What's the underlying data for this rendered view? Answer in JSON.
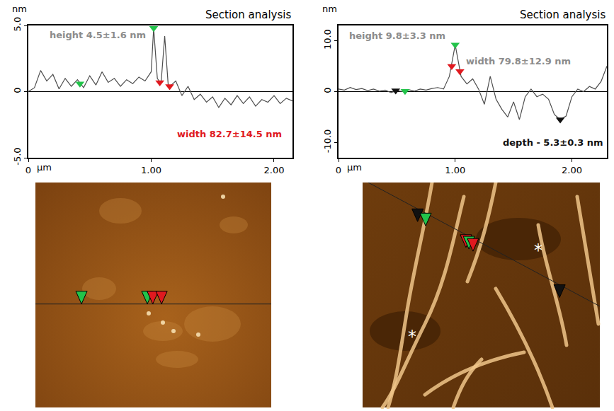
{
  "chart_data": [
    {
      "type": "line",
      "title": "Section analysis",
      "y_label": "nm",
      "x_label": "μm",
      "xlim": [
        0,
        2.15
      ],
      "ylim": [
        -5,
        5
      ],
      "xticks": [
        0,
        {
          "value": 1,
          "label": "1.00"
        },
        {
          "value": 2,
          "label": "2.00"
        }
      ],
      "yticks": [
        {
          "value": -5,
          "label": "-5.0"
        },
        0,
        {
          "value": 5,
          "label": "5.0"
        }
      ],
      "grid": false,
      "color": "#4d4d4d",
      "marker": "triangle-down",
      "x": [
        0,
        0.05,
        0.1,
        0.15,
        0.2,
        0.25,
        0.3,
        0.35,
        0.4,
        0.45,
        0.5,
        0.55,
        0.6,
        0.65,
        0.7,
        0.75,
        0.8,
        0.85,
        0.9,
        0.95,
        1.0,
        1.02,
        1.05,
        1.08,
        1.11,
        1.14,
        1.2,
        1.25,
        1.3,
        1.35,
        1.4,
        1.45,
        1.5,
        1.55,
        1.6,
        1.65,
        1.7,
        1.75,
        1.8,
        1.85,
        1.9,
        1.95,
        2.0,
        2.05,
        2.1,
        2.15
      ],
      "values": [
        0,
        0.3,
        1.6,
        0.8,
        1.3,
        0.2,
        1.0,
        0.4,
        0.9,
        0.3,
        1.2,
        0.5,
        1.5,
        0.7,
        1.0,
        0.4,
        0.9,
        0.6,
        1.1,
        0.8,
        1.5,
        4.8,
        1.0,
        0.6,
        4.2,
        0.3,
        0.8,
        -0.3,
        0.4,
        -0.6,
        -0.2,
        -0.8,
        -0.4,
        -1.2,
        -0.5,
        -1.0,
        -0.3,
        -0.9,
        -0.4,
        -1.1,
        -0.6,
        -0.8,
        -0.3,
        -0.9,
        -0.5,
        -0.7
      ],
      "cursors": [
        {
          "x": 0.42,
          "y": 0.6,
          "color": "#22c34a"
        },
        {
          "x": 1.02,
          "y": 4.8,
          "color": "#22c34a"
        },
        {
          "x": 1.07,
          "y": 0.7,
          "color": "#e0191f"
        },
        {
          "x": 1.15,
          "y": 0.4,
          "color": "#e0191f"
        }
      ],
      "annotations": [
        {
          "text": "height 4.5±1.6 nm",
          "color": "#8c8c8c"
        },
        {
          "text": "width 82.7±14.5 nm",
          "color": "#e0191f"
        }
      ]
    },
    {
      "type": "line",
      "title": "Section analysis",
      "y_label": "nm",
      "x_label": "μm",
      "xlim": [
        0,
        2.3
      ],
      "ylim": [
        -13,
        13
      ],
      "xticks": [
        0,
        {
          "value": 1,
          "label": "1.00"
        },
        {
          "value": 2,
          "label": "2.00"
        }
      ],
      "yticks": [
        {
          "value": -10,
          "label": "-10.0"
        },
        0,
        {
          "value": 10,
          "label": "10.0"
        }
      ],
      "grid": false,
      "color": "#4d4d4d",
      "marker": "triangle-down",
      "x": [
        0,
        0.05,
        0.1,
        0.15,
        0.2,
        0.25,
        0.3,
        0.35,
        0.4,
        0.45,
        0.5,
        0.55,
        0.6,
        0.65,
        0.7,
        0.75,
        0.8,
        0.85,
        0.9,
        0.95,
        1.0,
        1.05,
        1.1,
        1.15,
        1.2,
        1.25,
        1.3,
        1.35,
        1.4,
        1.45,
        1.5,
        1.55,
        1.6,
        1.65,
        1.7,
        1.75,
        1.8,
        1.85,
        1.9,
        1.95,
        2.0,
        2.05,
        2.1,
        2.15,
        2.2,
        2.25,
        2.3
      ],
      "values": [
        0.5,
        0.3,
        0.8,
        0.4,
        0.6,
        0.2,
        0.5,
        0.1,
        0.3,
        -0.2,
        0.2,
        0,
        0.4,
        0.1,
        0.5,
        0.3,
        0.6,
        0.8,
        0.5,
        3,
        9.2,
        3,
        1.5,
        2.5,
        0.5,
        -2.5,
        3,
        -1.5,
        -3.5,
        -5,
        -2,
        -5.5,
        -1,
        0.5,
        -1,
        -0.5,
        -1.5,
        -4.5,
        -5.5,
        -4.8,
        -1,
        0.5,
        0,
        1,
        0.5,
        2,
        5
      ],
      "cursors": [
        {
          "x": 0.49,
          "y": 0.2,
          "color": "#111111"
        },
        {
          "x": 0.57,
          "y": 0.1,
          "color": "#22c34a"
        },
        {
          "x": 0.97,
          "y": 5,
          "color": "#e0191f"
        },
        {
          "x": 1.0,
          "y": 9.2,
          "color": "#22c34a"
        },
        {
          "x": 1.04,
          "y": 4,
          "color": "#e0191f"
        },
        {
          "x": 1.9,
          "y": -5.5,
          "color": "#111111"
        }
      ],
      "annotations": [
        {
          "text": "height 9.8±3.3 nm",
          "color": "#8c8c8c"
        },
        {
          "text": "width 79.8±12.9 nm",
          "color": "#8c8c8c"
        },
        {
          "text": "depth - 5.3±0.3 nm",
          "color": "#111111"
        }
      ]
    }
  ],
  "images": [
    {
      "labels": []
    },
    {
      "labels": [
        "*",
        "*"
      ]
    }
  ]
}
